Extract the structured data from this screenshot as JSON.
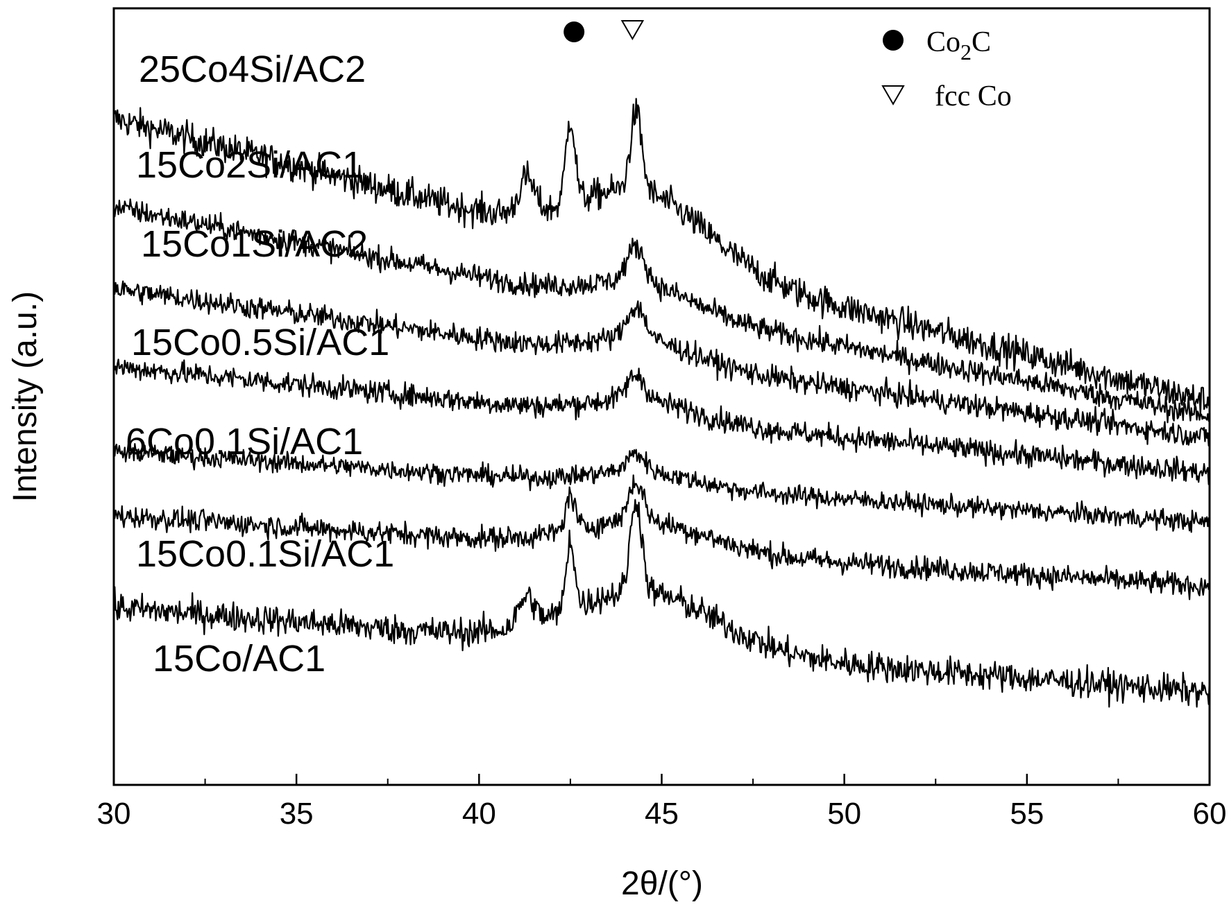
{
  "chart_data": {
    "type": "line",
    "title": "",
    "xlabel": "2θ/(°)",
    "ylabel": "Intensity (a.u.)",
    "xlim": [
      30,
      60
    ],
    "xticks": [
      "30",
      "35",
      "40",
      "45",
      "50",
      "55",
      "60"
    ],
    "xtick_values": [
      30,
      35,
      40,
      45,
      50,
      55,
      60
    ],
    "y_ticks_shown": false,
    "grid": false,
    "noisy_traces": true,
    "stacked_offset_traces": true,
    "legend": {
      "placement": "top-right",
      "entries": [
        {
          "symbol": "filled-circle",
          "label_main": "Co",
          "label_sub": "2",
          "label_tail": "C"
        },
        {
          "symbol": "open-triangle-down",
          "label_main": "fcc Co",
          "label_sub": "",
          "label_tail": ""
        }
      ]
    },
    "peak_markers": [
      {
        "symbol": "filled-circle",
        "phase": "Co2C",
        "x": 42.6
      },
      {
        "symbol": "open-triangle-down",
        "phase": "fcc Co",
        "x": 44.2
      }
    ],
    "series": [
      {
        "name": "25Co4Si/AC2",
        "start": 6.7,
        "end": 2.7,
        "hump": {
          "x": 44.5,
          "h": 0.9,
          "w": 2.5
        },
        "peaks": [
          {
            "x": 42.5,
            "h": 1.2,
            "w": 0.18
          },
          {
            "x": 44.3,
            "h": 1.1,
            "w": 0.22
          },
          {
            "x": 41.3,
            "h": 0.5,
            "w": 0.3
          }
        ],
        "noise": 0.95
      },
      {
        "name": "15Co2Si/AC1",
        "start": 5.45,
        "end": 2.5,
        "hump": {
          "x": 44.5,
          "h": 0.35,
          "w": 2.0
        },
        "peaks": [
          {
            "x": 44.3,
            "h": 0.5,
            "w": 0.35
          }
        ],
        "noise": 0.7
      },
      {
        "name": "15Co1Si/AC2",
        "start": 4.3,
        "end": 2.2,
        "hump": {
          "x": 44.5,
          "h": 0.3,
          "w": 2.0
        },
        "peaks": [
          {
            "x": 44.3,
            "h": 0.45,
            "w": 0.35
          }
        ],
        "noise": 0.7
      },
      {
        "name": "15Co0.5Si/AC1",
        "start": 3.2,
        "end": 1.7,
        "hump": {
          "x": 44.5,
          "h": 0.25,
          "w": 2.0
        },
        "peaks": [
          {
            "x": 44.3,
            "h": 0.35,
            "w": 0.35
          }
        ],
        "noise": 0.7
      },
      {
        "name": "6Co0.1Si/AC1",
        "start": 2.0,
        "end": 1.0,
        "hump": {
          "x": 44.5,
          "h": 0.2,
          "w": 2.0
        },
        "peaks": [
          {
            "x": 44.3,
            "h": 0.25,
            "w": 0.35
          }
        ],
        "noise": 0.6
      },
      {
        "name": "15Co0.1Si/AC1",
        "start": 1.1,
        "end": 0.1,
        "hump": {
          "x": 44.5,
          "h": 0.4,
          "w": 2.5
        },
        "peaks": [
          {
            "x": 42.5,
            "h": 0.5,
            "w": 0.18
          },
          {
            "x": 44.3,
            "h": 0.55,
            "w": 0.3
          }
        ],
        "noise": 0.7
      },
      {
        "name": "15Co/AC1",
        "start": -0.2,
        "end": -1.4,
        "hump": {
          "x": 44.5,
          "h": 0.8,
          "w": 2.8
        },
        "peaks": [
          {
            "x": 42.5,
            "h": 1.0,
            "w": 0.16
          },
          {
            "x": 44.3,
            "h": 1.3,
            "w": 0.22
          },
          {
            "x": 41.3,
            "h": 0.4,
            "w": 0.3
          }
        ],
        "noise": 0.9
      }
    ]
  }
}
